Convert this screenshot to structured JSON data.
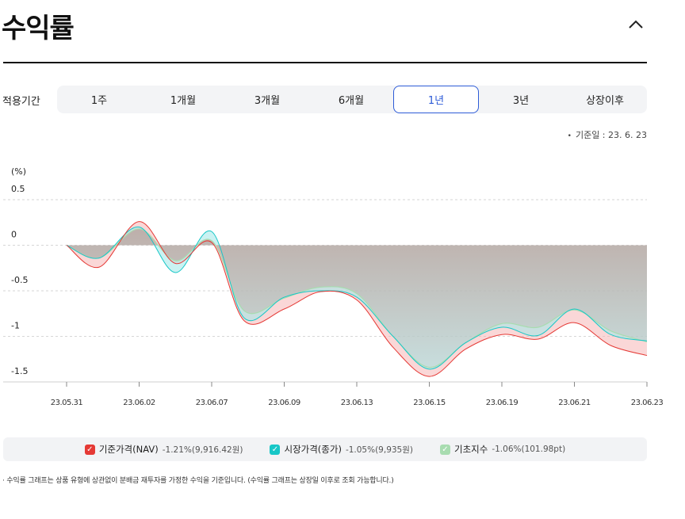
{
  "page": {
    "title": "수익률"
  },
  "period": {
    "label": "적용기간",
    "tabs": [
      "1주",
      "1개월",
      "3개월",
      "6개월",
      "1년",
      "3년",
      "상장이후"
    ],
    "active_index": 4
  },
  "base_date": "기준일 : 23. 6. 23",
  "legend": [
    {
      "name": "기준가격(NAV)",
      "value": "-1.21%(9,916.42원)",
      "color": "#e53935"
    },
    {
      "name": "시장가격(종가)",
      "value": "-1.05%(9,935원)",
      "color": "#17c7c7"
    },
    {
      "name": "기초지수",
      "value": "-1.06%(101.98pt)",
      "color": "#a8dcb0"
    }
  ],
  "footnote": "· 수익률 그래프는 상품 유형에 상관없이 분배금 재투자를 가정한 수익을 기준입니다. (수익률 그래프는 상장일 이후로 조회 가능합니다.)",
  "chart_data": {
    "type": "area",
    "ylabel": "(%)",
    "ylim": [
      -1.5,
      0.5
    ],
    "yticks": [
      0.5,
      0,
      -0.5,
      -1,
      -1.5
    ],
    "ytick_labels": [
      "0.5",
      "0",
      "-0.5",
      "-1",
      "-1.5"
    ],
    "xlim": [
      0,
      8
    ],
    "xticks": [
      0,
      1,
      2,
      3,
      4,
      5,
      6,
      7,
      8
    ],
    "xtick_labels": [
      "23.05.31",
      "23.06.02",
      "23.06.07",
      "23.06.09",
      "23.06.13",
      "23.06.15",
      "23.06.19",
      "23.06.21",
      "23.06.23"
    ],
    "grid": true,
    "series": [
      {
        "name": "기준가격(NAV)",
        "color": "#e53935",
        "x": [
          0,
          0.45,
          1.0,
          1.5,
          2.0,
          2.45,
          3.0,
          3.5,
          4.0,
          4.5,
          5.0,
          5.5,
          6.0,
          6.5,
          7.0,
          7.5,
          8.0
        ],
        "y": [
          0,
          -0.24,
          0.26,
          -0.2,
          0.03,
          -0.83,
          -0.7,
          -0.51,
          -0.6,
          -1.12,
          -1.44,
          -1.14,
          -0.98,
          -1.03,
          -0.85,
          -1.1,
          -1.21
        ]
      },
      {
        "name": "시장가격(종가)",
        "color": "#17c7c7",
        "x": [
          0,
          0.45,
          1.0,
          1.5,
          2.0,
          2.45,
          3.0,
          3.5,
          4.0,
          4.5,
          5.0,
          5.5,
          6.0,
          6.5,
          7.0,
          7.5,
          8.0
        ],
        "y": [
          0,
          -0.14,
          0.2,
          -0.3,
          0.15,
          -0.8,
          -0.57,
          -0.5,
          -0.57,
          -1.0,
          -1.36,
          -1.07,
          -0.9,
          -0.99,
          -0.7,
          -0.98,
          -1.05
        ]
      },
      {
        "name": "기초지수",
        "color": "#a8dcb0",
        "x": [
          0,
          0.45,
          1.0,
          1.5,
          2.0,
          2.45,
          3.0,
          3.5,
          4.0,
          4.5,
          5.0,
          5.5,
          6.0,
          6.5,
          7.0,
          7.5,
          8.0
        ],
        "y": [
          0,
          -0.14,
          0.18,
          -0.17,
          0.05,
          -0.72,
          -0.58,
          -0.46,
          -0.53,
          -1.0,
          -1.34,
          -1.07,
          -0.86,
          -0.9,
          -0.71,
          -0.94,
          -1.06
        ]
      }
    ]
  }
}
